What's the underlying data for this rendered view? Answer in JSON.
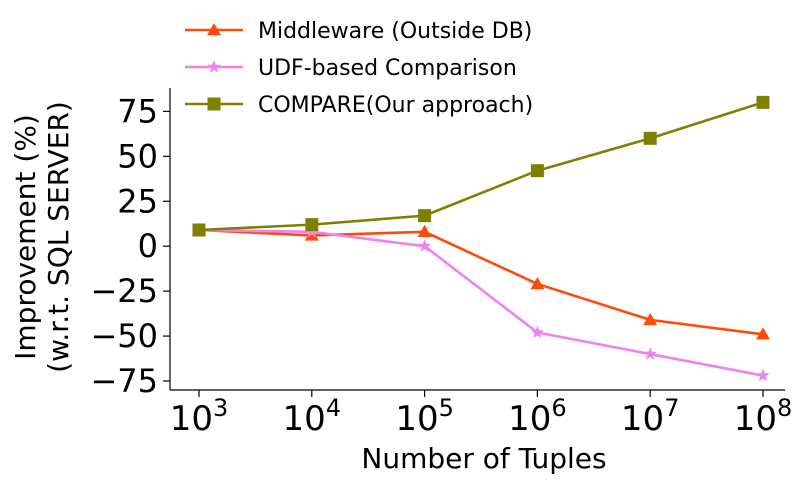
{
  "chart_data": {
    "type": "line",
    "title": "",
    "xlabel": "Number of Tuples",
    "ylabel_lines": [
      "Improvement (%)",
      "(w.r.t. SQL SERVER)"
    ],
    "x_ticks": [
      {
        "base": "10",
        "exp": "3"
      },
      {
        "base": "10",
        "exp": "4"
      },
      {
        "base": "10",
        "exp": "5"
      },
      {
        "base": "10",
        "exp": "6"
      },
      {
        "base": "10",
        "exp": "7"
      },
      {
        "base": "10",
        "exp": "8"
      }
    ],
    "x": [
      3,
      4,
      5,
      6,
      7,
      8
    ],
    "xscale": "log",
    "y_ticks": [
      75,
      50,
      25,
      0,
      -25,
      -50,
      -75
    ],
    "y_tick_labels": [
      "75",
      "50",
      "25",
      "0",
      "−25",
      "−50",
      "−75"
    ],
    "ylim": [
      -80,
      88
    ],
    "grid": false,
    "legend_location": "upper-left",
    "series": [
      {
        "name": "Middleware (Outside DB)",
        "color": "#ff4a0a",
        "marker": "triangle",
        "values": [
          9,
          6,
          8,
          -21,
          -41,
          -49
        ]
      },
      {
        "name": "UDF-based Comparison",
        "color": "#ee82ee",
        "marker": "star",
        "values": [
          9,
          8,
          0,
          -48,
          -60,
          -72
        ]
      },
      {
        "name": "COMPARE(Our approach)",
        "color": "#808000",
        "marker": "square",
        "values": [
          9,
          12,
          17,
          42,
          60,
          80
        ]
      }
    ]
  }
}
